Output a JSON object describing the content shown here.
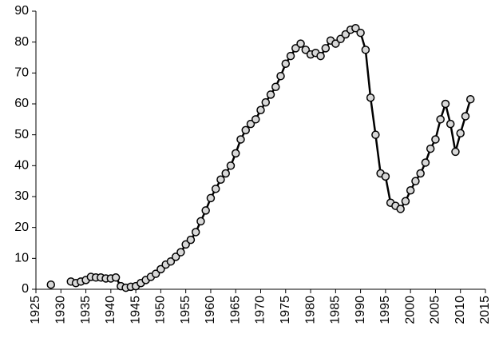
{
  "chart_data": {
    "type": "line",
    "x": [
      1928,
      1929,
      1930,
      1931,
      1932,
      1933,
      1934,
      1935,
      1936,
      1937,
      1938,
      1939,
      1940,
      1941,
      1942,
      1943,
      1944,
      1945,
      1946,
      1947,
      1948,
      1949,
      1950,
      1951,
      1952,
      1953,
      1954,
      1955,
      1956,
      1957,
      1958,
      1959,
      1960,
      1961,
      1962,
      1963,
      1964,
      1965,
      1966,
      1967,
      1968,
      1969,
      1970,
      1971,
      1972,
      1973,
      1974,
      1975,
      1976,
      1977,
      1978,
      1979,
      1980,
      1981,
      1982,
      1983,
      1984,
      1985,
      1986,
      1987,
      1988,
      1989,
      1990,
      1991,
      1992,
      1993,
      1994,
      1995,
      1996,
      1997,
      1998,
      1999,
      2000,
      2001,
      2002,
      2003,
      2004,
      2005,
      2006,
      2007,
      2008,
      2009,
      2010,
      2011,
      2012
    ],
    "series": [
      {
        "color": "#000000",
        "values": [
          1.5,
          null,
          null,
          null,
          2.5,
          2,
          2.5,
          3,
          4,
          3.8,
          3.8,
          3.5,
          3.5,
          3.8,
          1,
          0.5,
          0.8,
          1,
          2,
          3,
          4,
          5,
          6.5,
          8,
          9,
          10.5,
          12,
          14.5,
          16,
          18.5,
          22,
          25.5,
          29.5,
          32.5,
          35.5,
          37.5,
          40,
          44,
          48.5,
          51.5,
          53.5,
          55,
          58,
          60.5,
          63,
          65.5,
          69,
          73,
          75.5,
          78,
          79.5,
          77.5,
          76,
          76.5,
          75.5,
          78,
          80.5,
          79.5,
          81,
          82.5,
          84,
          84.5,
          83,
          77.5,
          62,
          50,
          37.5,
          36.5,
          28,
          27,
          26,
          28.5,
          32,
          35,
          37.5,
          41,
          45.5,
          48.5,
          55,
          60,
          53.5,
          44.5,
          50.5,
          56,
          61.5
        ]
      }
    ],
    "xlim": [
      1925,
      2015
    ],
    "xticks": [
      1925,
      1930,
      1935,
      1940,
      1945,
      1950,
      1955,
      1960,
      1965,
      1970,
      1975,
      1980,
      1985,
      1990,
      1995,
      2000,
      2005,
      2010,
      2015
    ],
    "ylim": [
      0,
      90
    ],
    "yticks": [
      0,
      10,
      20,
      30,
      40,
      50,
      60,
      70,
      80,
      90
    ],
    "grid": false
  }
}
